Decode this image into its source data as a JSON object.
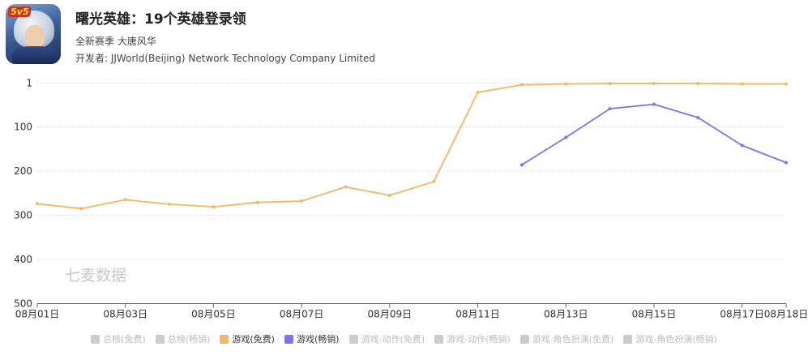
{
  "app": {
    "badge": "5v5",
    "title": "曙光英雄：19个英雄登录领",
    "subtitle": "全新赛季 大唐风华",
    "developer": "开发者: JJWorld(Beijing) Network Technology Company Limited"
  },
  "watermark": "七麦数据",
  "colors": {
    "free": "#f5b565",
    "grossing": "#8072ee",
    "inactive": "#cccccc",
    "grid": "#dddddd",
    "axis": "#666666"
  },
  "chart_data": {
    "type": "line",
    "x": [
      "08月01日",
      "08月02日",
      "08月03日",
      "08月04日",
      "08月05日",
      "08月06日",
      "08月07日",
      "08月08日",
      "08月09日",
      "08月10日",
      "08月11日",
      "08月12日",
      "08月13日",
      "08月14日",
      "08月15日",
      "08月16日",
      "08月17日",
      "08月18日"
    ],
    "x_tick_labels": [
      "08月01日",
      "08月03日",
      "08月05日",
      "08月07日",
      "08月09日",
      "08月11日",
      "08月13日",
      "08月15日",
      "08月17日",
      "08月18日"
    ],
    "y_axis": {
      "inverted": true,
      "range": [
        1,
        500
      ],
      "ticks": [
        1,
        100,
        200,
        300,
        400,
        500
      ]
    },
    "grid": "horizontal-dashed",
    "series": [
      {
        "name": "游戏(免费)",
        "color": "#f5b565",
        "values": [
          274,
          285,
          265,
          275,
          281,
          271,
          268,
          236,
          255,
          224,
          22,
          5,
          3,
          2,
          2,
          2,
          3,
          3
        ]
      },
      {
        "name": "游戏(畅销)",
        "color": "#8072ee",
        "values": [
          null,
          null,
          null,
          null,
          null,
          null,
          null,
          null,
          null,
          null,
          null,
          186,
          124,
          59,
          49,
          79,
          142,
          181
        ]
      }
    ],
    "legend": {
      "placement": "bottom-center",
      "items": [
        {
          "label": "总榜(免费)",
          "active": false
        },
        {
          "label": "总榜(畅销)",
          "active": false
        },
        {
          "label": "游戏(免费)",
          "active": true,
          "color": "#f5b565"
        },
        {
          "label": "游戏(畅销)",
          "active": true,
          "color": "#8072ee"
        },
        {
          "label": "游戏-动作(免费)",
          "active": false
        },
        {
          "label": "游戏-动作(畅销)",
          "active": false
        },
        {
          "label": "游戏-角色扮演(免费)",
          "active": false
        },
        {
          "label": "游戏-角色扮演(畅销)",
          "active": false
        }
      ]
    }
  }
}
